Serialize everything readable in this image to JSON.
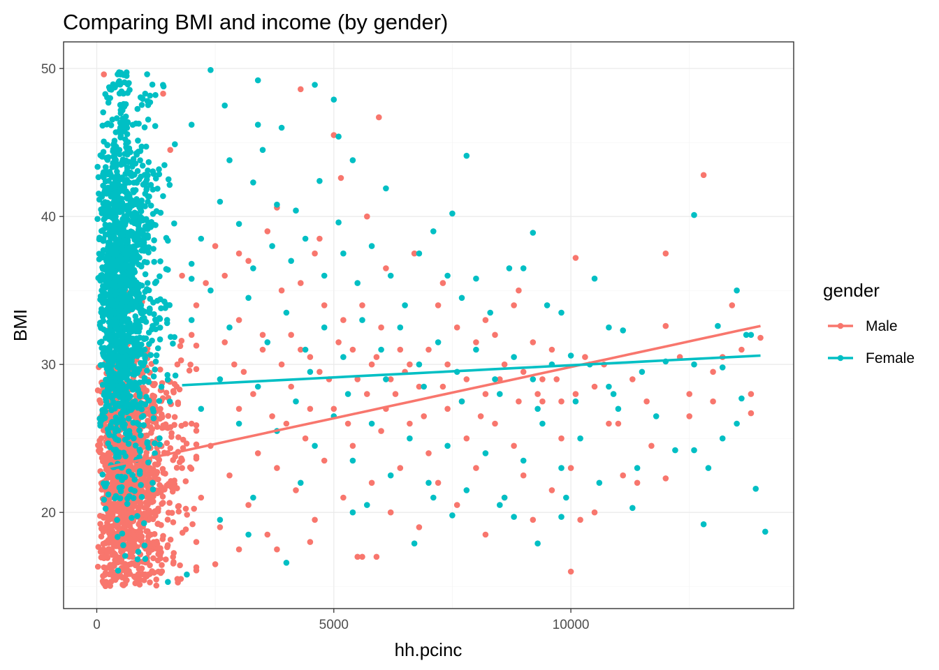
{
  "chart_data": {
    "type": "scatter",
    "title": "Comparing BMI and income (by gender)",
    "xlabel": "hh.pcinc",
    "ylabel": "BMI",
    "xlim": [
      -700,
      14700
    ],
    "ylim": [
      13.5,
      51.8
    ],
    "x_ticks": [
      {
        "value": 0,
        "label": "0"
      },
      {
        "value": 5000,
        "label": "5000"
      },
      {
        "value": 10000,
        "label": "10000"
      }
    ],
    "y_ticks": [
      {
        "value": 20,
        "label": "20"
      },
      {
        "value": 30,
        "label": "30"
      },
      {
        "value": 40,
        "label": "40"
      },
      {
        "value": 50,
        "label": "50"
      }
    ],
    "grid": true,
    "legend": {
      "title": "gender",
      "placement": "right"
    },
    "series": [
      {
        "name": "Male",
        "color": "#F8766D",
        "trend": {
          "x": [
            150,
            14000
          ],
          "y": [
            23.0,
            32.6
          ]
        },
        "points": [
          [
            150,
            49.6
          ],
          [
            1400,
            48.3
          ],
          [
            1550,
            44.5
          ],
          [
            4300,
            48.6
          ],
          [
            5000,
            45.5
          ],
          [
            5150,
            42.6
          ],
          [
            5950,
            46.7
          ],
          [
            1800,
            36.0
          ],
          [
            2100,
            34.0
          ],
          [
            2500,
            38.0
          ],
          [
            2700,
            36.0
          ],
          [
            3000,
            33.0
          ],
          [
            3200,
            37.0
          ],
          [
            3500,
            31.0
          ],
          [
            3800,
            40.6
          ],
          [
            3900,
            35.0
          ],
          [
            4100,
            32.0
          ],
          [
            4300,
            35.5
          ],
          [
            4600,
            37.5
          ],
          [
            4800,
            34.0
          ],
          [
            4500,
            30.5
          ],
          [
            5200,
            33.0
          ],
          [
            5400,
            31.0
          ],
          [
            5600,
            34.0
          ],
          [
            5800,
            30.0
          ],
          [
            6000,
            32.5
          ],
          [
            6200,
            29.0
          ],
          [
            6400,
            31.0
          ],
          [
            6600,
            30.0
          ],
          [
            6800,
            28.5
          ],
          [
            7000,
            31.0
          ],
          [
            7200,
            34.0
          ],
          [
            7400,
            30.0
          ],
          [
            7600,
            32.5
          ],
          [
            7800,
            29.0
          ],
          [
            8000,
            31.5
          ],
          [
            8200,
            28.0
          ],
          [
            8400,
            32.0
          ],
          [
            8600,
            30.0
          ],
          [
            8800,
            34.0
          ],
          [
            9000,
            29.5
          ],
          [
            9200,
            31.5
          ],
          [
            9400,
            29.0
          ],
          [
            9600,
            31.0
          ],
          [
            9800,
            27.5
          ],
          [
            10100,
            28.0
          ],
          [
            10300,
            30.5
          ],
          [
            10500,
            28.5
          ],
          [
            10700,
            30.0
          ],
          [
            11000,
            26.0
          ],
          [
            11300,
            29.0
          ],
          [
            11600,
            27.5
          ],
          [
            12000,
            32.6
          ],
          [
            12300,
            30.5
          ],
          [
            12500,
            26.5
          ],
          [
            12800,
            42.8
          ],
          [
            13000,
            29.5
          ],
          [
            13200,
            30.5
          ],
          [
            13400,
            34.0
          ],
          [
            13600,
            31.0
          ],
          [
            13800,
            28.0
          ],
          [
            14000,
            31.8
          ],
          [
            12000,
            37.5
          ],
          [
            10100,
            37.2
          ],
          [
            8900,
            35.0
          ],
          [
            8200,
            33.0
          ],
          [
            7300,
            35.5
          ],
          [
            6700,
            37.5
          ],
          [
            6100,
            36.5
          ],
          [
            5700,
            40.0
          ],
          [
            4700,
            38.5
          ],
          [
            3600,
            39.0
          ],
          [
            3000,
            37.5
          ],
          [
            2300,
            35.5
          ],
          [
            2000,
            32.0
          ],
          [
            1700,
            30.0
          ],
          [
            1800,
            23.0
          ],
          [
            2000,
            26.0
          ],
          [
            2200,
            21.0
          ],
          [
            2400,
            24.5
          ],
          [
            2600,
            19.0
          ],
          [
            2800,
            22.5
          ],
          [
            3000,
            27.0
          ],
          [
            3200,
            20.5
          ],
          [
            3400,
            24.0
          ],
          [
            3600,
            18.5
          ],
          [
            3800,
            23.0
          ],
          [
            4000,
            26.0
          ],
          [
            4200,
            21.5
          ],
          [
            4400,
            25.0
          ],
          [
            4600,
            19.5
          ],
          [
            4800,
            23.5
          ],
          [
            5000,
            27.0
          ],
          [
            5200,
            21.0
          ],
          [
            5400,
            24.5
          ],
          [
            5600,
            17.0
          ],
          [
            5800,
            22.0
          ],
          [
            6000,
            25.5
          ],
          [
            6200,
            20.0
          ],
          [
            6400,
            23.0
          ],
          [
            6600,
            26.0
          ],
          [
            6800,
            19.0
          ],
          [
            7000,
            24.0
          ],
          [
            7200,
            22.0
          ],
          [
            7400,
            27.0
          ],
          [
            7600,
            20.5
          ],
          [
            7800,
            25.0
          ],
          [
            8000,
            23.0
          ],
          [
            8200,
            18.5
          ],
          [
            8400,
            26.0
          ],
          [
            8600,
            21.0
          ],
          [
            8800,
            24.5
          ],
          [
            9000,
            22.5
          ],
          [
            9200,
            19.5
          ],
          [
            9400,
            27.5
          ],
          [
            9600,
            21.5
          ],
          [
            9800,
            25.0
          ],
          [
            10000,
            16.0
          ],
          [
            10000,
            23.0
          ],
          [
            10200,
            19.5
          ],
          [
            10500,
            20.0
          ],
          [
            10800,
            26.0
          ],
          [
            11100,
            22.5
          ],
          [
            11400,
            22.0
          ],
          [
            11700,
            24.5
          ],
          [
            12000,
            22.3
          ],
          [
            12500,
            28.0
          ],
          [
            13000,
            27.5
          ],
          [
            13800,
            26.7
          ],
          [
            2500,
            16.5
          ],
          [
            3000,
            17.5
          ],
          [
            5500,
            17.0
          ],
          [
            5900,
            17.0
          ],
          [
            4500,
            18.0
          ],
          [
            3800,
            17.5
          ],
          [
            2100,
            18.0
          ],
          [
            1700,
            15.5
          ],
          [
            1300,
            16.0
          ],
          [
            900,
            15.5
          ],
          [
            2900,
            30.0
          ],
          [
            3300,
            28.0
          ],
          [
            3700,
            26.5
          ],
          [
            4100,
            28.5
          ],
          [
            4500,
            27.0
          ],
          [
            4900,
            29.0
          ],
          [
            5300,
            26.0
          ],
          [
            5700,
            28.0
          ],
          [
            6100,
            27.0
          ],
          [
            6500,
            29.5
          ],
          [
            6900,
            26.5
          ],
          [
            7300,
            28.5
          ],
          [
            7700,
            27.5
          ],
          [
            8100,
            26.5
          ],
          [
            8500,
            29.0
          ],
          [
            8900,
            27.5
          ],
          [
            9300,
            28.0
          ],
          [
            9700,
            29.0
          ],
          [
            2700,
            31.5
          ],
          [
            3100,
            29.5
          ],
          [
            3500,
            32.0
          ],
          [
            3900,
            30.0
          ],
          [
            4300,
            31.0
          ],
          [
            4700,
            29.5
          ],
          [
            5100,
            31.5
          ],
          [
            5500,
            29.0
          ],
          [
            5900,
            30.5
          ],
          [
            6300,
            28.0
          ]
        ]
      },
      {
        "name": "Female",
        "color": "#00BFC4",
        "trend": {
          "x": [
            1800,
            14000
          ],
          "y": [
            28.6,
            30.6
          ]
        },
        "points": [
          [
            2400,
            49.9
          ],
          [
            4600,
            48.9
          ],
          [
            5000,
            47.9
          ],
          [
            3400,
            49.2
          ],
          [
            2700,
            47.5
          ],
          [
            3900,
            46.0
          ],
          [
            2000,
            46.2
          ],
          [
            3400,
            46.2
          ],
          [
            5100,
            45.4
          ],
          [
            3500,
            44.5
          ],
          [
            2800,
            43.8
          ],
          [
            7800,
            44.1
          ],
          [
            3300,
            42.3
          ],
          [
            4700,
            42.4
          ],
          [
            5400,
            43.8
          ],
          [
            6100,
            41.9
          ],
          [
            3800,
            40.8
          ],
          [
            4200,
            40.4
          ],
          [
            5100,
            39.6
          ],
          [
            7500,
            40.2
          ],
          [
            12600,
            40.1
          ],
          [
            2200,
            38.5
          ],
          [
            2600,
            41.0
          ],
          [
            3000,
            39.5
          ],
          [
            3300,
            36.5
          ],
          [
            3700,
            38.0
          ],
          [
            4100,
            37.0
          ],
          [
            4400,
            38.5
          ],
          [
            4800,
            36.0
          ],
          [
            5200,
            37.5
          ],
          [
            5500,
            35.5
          ],
          [
            5800,
            38.0
          ],
          [
            6200,
            36.0
          ],
          [
            6500,
            34.0
          ],
          [
            6800,
            37.5
          ],
          [
            7100,
            39.0
          ],
          [
            7400,
            36.0
          ],
          [
            7700,
            34.5
          ],
          [
            8000,
            35.8
          ],
          [
            8300,
            33.5
          ],
          [
            8700,
            36.5
          ],
          [
            9000,
            36.5
          ],
          [
            9200,
            38.9
          ],
          [
            9500,
            34.0
          ],
          [
            9800,
            33.5
          ],
          [
            10500,
            35.8
          ],
          [
            10800,
            32.5
          ],
          [
            11100,
            32.3
          ],
          [
            13100,
            32.6
          ],
          [
            13500,
            35.0
          ],
          [
            13800,
            32.0
          ],
          [
            2000,
            33.0
          ],
          [
            2400,
            35.0
          ],
          [
            2800,
            32.5
          ],
          [
            3200,
            34.5
          ],
          [
            3600,
            31.5
          ],
          [
            4000,
            33.5
          ],
          [
            4400,
            31.0
          ],
          [
            4800,
            32.5
          ],
          [
            5200,
            30.5
          ],
          [
            5600,
            33.0
          ],
          [
            6000,
            31.0
          ],
          [
            6400,
            32.5
          ],
          [
            6800,
            30.0
          ],
          [
            7200,
            31.5
          ],
          [
            7600,
            29.5
          ],
          [
            8000,
            31.0
          ],
          [
            8400,
            29.0
          ],
          [
            8800,
            30.5
          ],
          [
            9200,
            29.0
          ],
          [
            9600,
            30.0
          ],
          [
            10000,
            30.6
          ],
          [
            10400,
            30.0
          ],
          [
            10800,
            28.5
          ],
          [
            11500,
            29.5
          ],
          [
            12000,
            30.2
          ],
          [
            12600,
            30.0
          ],
          [
            13200,
            29.8
          ],
          [
            13700,
            32.0
          ],
          [
            2200,
            27.0
          ],
          [
            2600,
            29.0
          ],
          [
            3000,
            26.0
          ],
          [
            3400,
            28.5
          ],
          [
            3800,
            25.5
          ],
          [
            4200,
            27.5
          ],
          [
            4600,
            24.5
          ],
          [
            5000,
            26.5
          ],
          [
            5400,
            23.5
          ],
          [
            5800,
            26.0
          ],
          [
            6200,
            22.5
          ],
          [
            6600,
            25.0
          ],
          [
            7000,
            22.0
          ],
          [
            7400,
            24.5
          ],
          [
            7800,
            21.5
          ],
          [
            8200,
            24.0
          ],
          [
            8600,
            21.0
          ],
          [
            9000,
            23.5
          ],
          [
            9400,
            26.0
          ],
          [
            9800,
            23.0
          ],
          [
            10200,
            25.0
          ],
          [
            10600,
            22.0
          ],
          [
            11000,
            27.0
          ],
          [
            11400,
            23.0
          ],
          [
            11800,
            26.5
          ],
          [
            12200,
            24.2
          ],
          [
            12600,
            24.2
          ],
          [
            12900,
            23.0
          ],
          [
            13200,
            25.0
          ],
          [
            13500,
            26.0
          ],
          [
            13600,
            27.7
          ],
          [
            13900,
            21.6
          ],
          [
            14100,
            18.7
          ],
          [
            12800,
            19.2
          ],
          [
            9800,
            19.7
          ],
          [
            9300,
            17.9
          ],
          [
            8800,
            19.7
          ],
          [
            7500,
            19.8
          ],
          [
            6700,
            17.9
          ],
          [
            5400,
            20.0
          ],
          [
            4000,
            16.6
          ],
          [
            3200,
            18.5
          ],
          [
            2600,
            19.5
          ],
          [
            1900,
            15.8
          ],
          [
            1500,
            15.3
          ],
          [
            3300,
            21.0
          ],
          [
            4300,
            22.0
          ],
          [
            5700,
            20.5
          ],
          [
            7100,
            21.0
          ],
          [
            8500,
            20.5
          ],
          [
            9900,
            21.0
          ],
          [
            11300,
            20.3
          ],
          [
            4500,
            29.5
          ],
          [
            5300,
            28.0
          ],
          [
            6100,
            29.0
          ],
          [
            6900,
            28.5
          ],
          [
            7700,
            27.5
          ],
          [
            8500,
            28.0
          ],
          [
            9300,
            27.0
          ],
          [
            10100,
            27.5
          ],
          [
            10900,
            28.0
          ]
        ]
      }
    ],
    "dense_cluster": {
      "note_source": "visible",
      "x_range": [
        0,
        2000
      ],
      "female_y_center": 35.0,
      "male_y_center": 22.5
    }
  }
}
